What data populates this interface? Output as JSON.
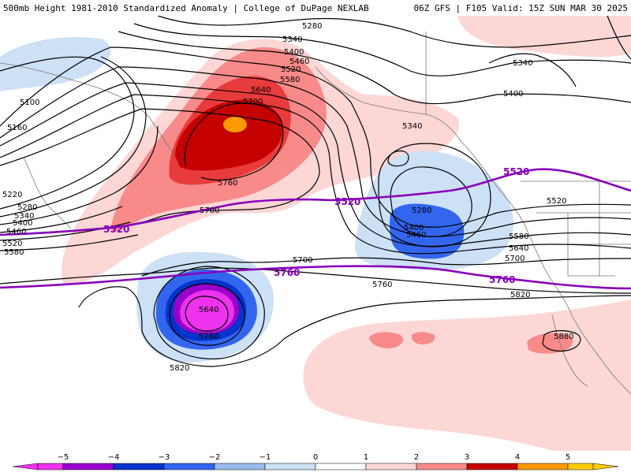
{
  "header": {
    "left": "500mb Height 1981-2010 Standardized Anomaly | College of DuPage NEXLAB",
    "right": "06Z GFS | F105 Valid: 15Z SUN MAR 30 2025"
  },
  "contour_labels": [
    {
      "id": "l5280t",
      "text": "5280"
    },
    {
      "id": "l5340a",
      "text": "5340"
    },
    {
      "id": "l5400a",
      "text": "5400"
    },
    {
      "id": "l5460a",
      "text": "5460"
    },
    {
      "id": "l5520a",
      "text": "5520"
    },
    {
      "id": "l5580a",
      "text": "5580"
    },
    {
      "id": "l5640a",
      "text": "5640"
    },
    {
      "id": "l5700a",
      "text": "5700"
    },
    {
      "id": "l5760a",
      "text": "5760"
    },
    {
      "id": "l5100",
      "text": "5100"
    },
    {
      "id": "l5160",
      "text": "5160"
    },
    {
      "id": "l5220",
      "text": "5220"
    },
    {
      "id": "l5280w",
      "text": "5280"
    },
    {
      "id": "l5340w",
      "text": "5340"
    },
    {
      "id": "l5400w",
      "text": "5400"
    },
    {
      "id": "l5460w",
      "text": "5460"
    },
    {
      "id": "l5520w",
      "text": "5520"
    },
    {
      "id": "l5580w",
      "text": "5580"
    },
    {
      "id": "l5700b",
      "text": "5700"
    },
    {
      "id": "l5340e",
      "text": "5340"
    },
    {
      "id": "l5400e",
      "text": "5400"
    },
    {
      "id": "l5340c",
      "text": "5340"
    },
    {
      "id": "l5280c",
      "text": "5280"
    },
    {
      "id": "l5400c",
      "text": "5400"
    },
    {
      "id": "l5460c",
      "text": "5460"
    },
    {
      "id": "l5520r",
      "text": "5520"
    },
    {
      "id": "l5580r",
      "text": "5580"
    },
    {
      "id": "l5640r",
      "text": "5640"
    },
    {
      "id": "l5700r",
      "text": "5700"
    },
    {
      "id": "l5700m",
      "text": "5700"
    },
    {
      "id": "l5760m",
      "text": "5760"
    },
    {
      "id": "l5820r",
      "text": "5820"
    },
    {
      "id": "l5880r",
      "text": "5880"
    },
    {
      "id": "l5640s",
      "text": "5640"
    },
    {
      "id": "l5760s",
      "text": "5760"
    },
    {
      "id": "l5820s",
      "text": "5820"
    }
  ],
  "purple_labels": [
    {
      "id": "p5520w",
      "text": "5520"
    },
    {
      "id": "p5520m",
      "text": "5520"
    },
    {
      "id": "p5520e",
      "text": "5520"
    },
    {
      "id": "p5760m",
      "text": "5760"
    },
    {
      "id": "p5760e",
      "text": "5760"
    }
  ],
  "colorbar": {
    "ticks": [
      "−5",
      "−4",
      "−3",
      "−2",
      "−1",
      "0",
      "1",
      "2",
      "3",
      "4",
      "5"
    ],
    "colors": [
      "#ee33ee",
      "#9900cc",
      "#0033cc",
      "#3366ee",
      "#99bbee",
      "#cce0f6",
      "#ffffff",
      "#fdd6d6",
      "#f88a8a",
      "#e83b3b",
      "#c40000",
      "#ff9900",
      "#ffcc00"
    ]
  }
}
